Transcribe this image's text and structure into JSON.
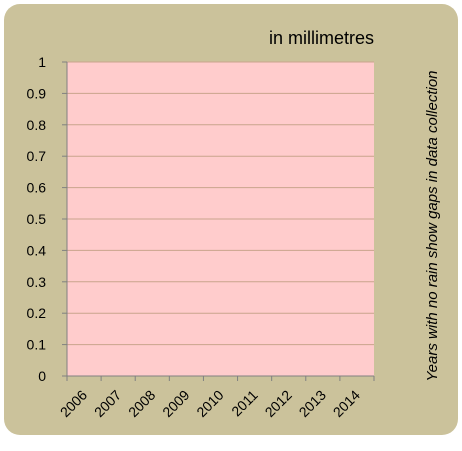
{
  "chart_data": {
    "type": "bar",
    "unit_label": "in millimetres",
    "side_note": "Years with no rain show gaps in data collection",
    "categories": [
      "2006",
      "2007",
      "2008",
      "2009",
      "2010",
      "2011",
      "2012",
      "2013",
      "2014"
    ],
    "values": [
      0,
      0,
      0,
      0,
      0,
      0,
      0,
      0,
      0
    ],
    "ylim": [
      0,
      1
    ],
    "yticks": [
      "0",
      "0.1",
      "0.2",
      "0.3",
      "0.4",
      "0.5",
      "0.6",
      "0.7",
      "0.8",
      "0.9",
      "1"
    ],
    "grid": true,
    "colors": {
      "background": "#cbc29b",
      "plot_area": "#ffcccc",
      "gridline": "#c9a48c",
      "axis": "#808080"
    }
  }
}
